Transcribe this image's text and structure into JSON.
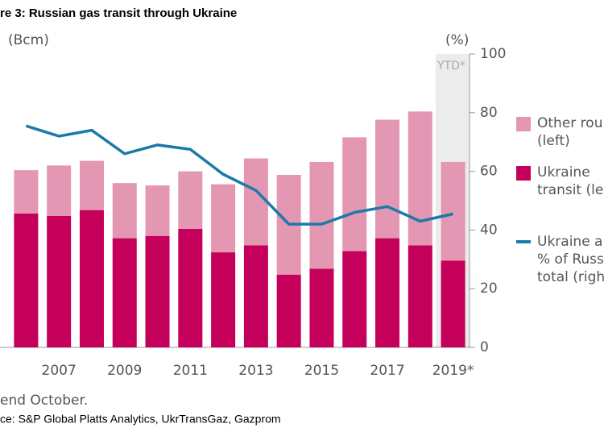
{
  "chart_data": {
    "type": "stacked-bar-line",
    "title": "re 3: Russian gas transit through Ukraine",
    "y_label": "(Bcm)",
    "y2_label": "(%)",
    "annotation": "YTD*",
    "footnote": "end October.",
    "source": "ce: S&P Global Platts Analytics, UkrTransGaz, Gazprom",
    "categories": [
      null,
      "2007",
      null,
      "2009",
      null,
      "2011",
      null,
      "2013",
      null,
      "2015",
      null,
      "2017",
      null,
      "2019*"
    ],
    "ylim": [
      0,
      250
    ],
    "y2lim": [
      0,
      100
    ],
    "y2ticks": [
      0,
      20,
      40,
      60,
      80,
      100
    ],
    "series": [
      {
        "name": "Ukraine\ntransit (le",
        "color": "#c4005a",
        "kind": "bar",
        "values": [
          114,
          112,
          117,
          93,
          95,
          101,
          81,
          87,
          62,
          67,
          82,
          93,
          87,
          74
        ]
      },
      {
        "name": "Other rou\n(left)",
        "color": "#e397b2",
        "kind": "bar",
        "values": [
          37,
          43,
          42,
          47,
          43,
          49,
          58,
          74,
          85,
          91,
          97,
          101,
          114,
          84
        ]
      },
      {
        "name": "Ukraine a\n% of Russ\ntotal (righ",
        "color": "#1b7aa8",
        "kind": "line",
        "axis": "y2",
        "values": [
          75.5,
          72,
          74,
          66,
          69,
          67.5,
          59,
          53.5,
          42,
          42,
          46,
          48,
          43,
          45.5
        ]
      }
    ]
  }
}
